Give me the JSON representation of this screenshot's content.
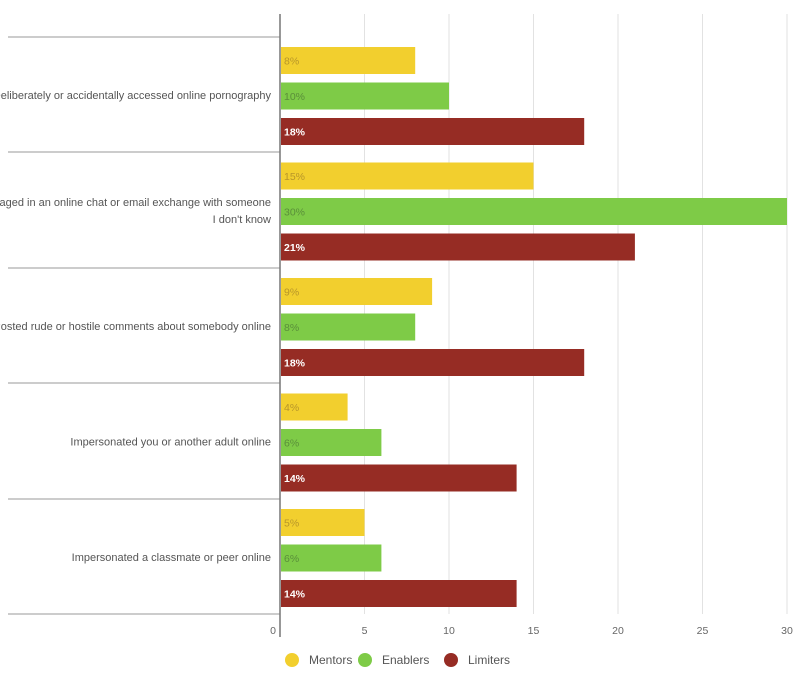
{
  "chart_data": {
    "type": "bar",
    "orientation": "horizontal",
    "categories": [
      [
        "Deliberately or accidentally accessed online pornography"
      ],
      [
        "Engaged in an online chat or email exchange with someone",
        "I don't know"
      ],
      [
        "Posted rude or hostile comments about somebody online"
      ],
      [
        "Impersonated you or another adult online"
      ],
      [
        "Impersonated a classmate or peer online"
      ]
    ],
    "series": [
      {
        "name": "Mentors",
        "color": "#f2cf2e",
        "label_color": "#b8962a",
        "values": [
          8,
          15,
          9,
          4,
          5
        ],
        "labels": [
          "8%",
          "15%",
          "9%",
          "4%",
          "5%"
        ]
      },
      {
        "name": "Enablers",
        "color": "#7ecb47",
        "label_color": "#5a8f3a",
        "values": [
          10,
          30,
          8,
          6,
          6
        ],
        "labels": [
          "10%",
          "30%",
          "8%",
          "6%",
          "6%"
        ]
      },
      {
        "name": "Limiters",
        "color": "#962c24",
        "label_color": "#ffffff",
        "values": [
          18,
          21,
          18,
          14,
          14
        ],
        "labels": [
          "18%",
          "21%",
          "18%",
          "14%",
          "14%"
        ]
      }
    ],
    "x_ticks": [
      0,
      5,
      10,
      15,
      20,
      25,
      30
    ],
    "xlim": [
      0,
      30
    ],
    "grid": true,
    "legend_position": "bottom"
  }
}
